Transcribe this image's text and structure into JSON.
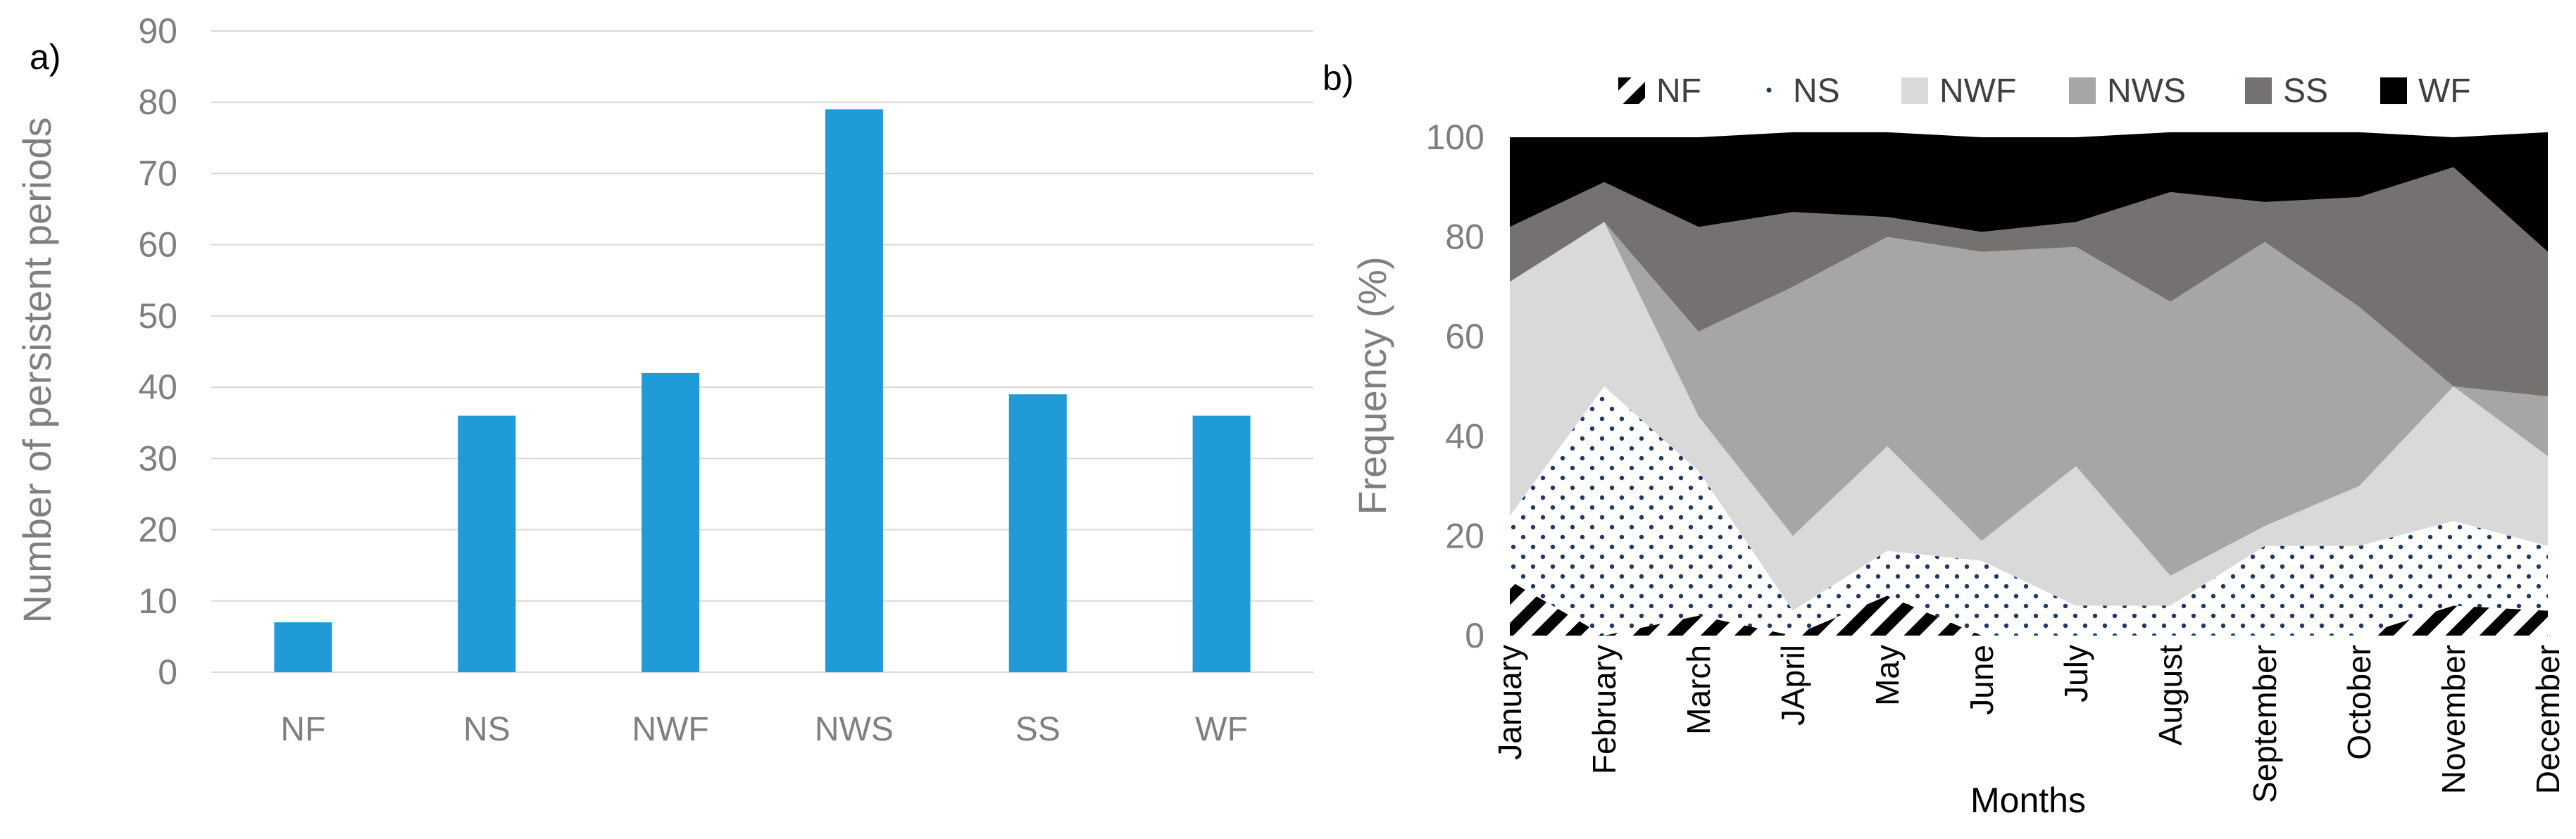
{
  "chart_data": [
    {
      "panel_label": "a)",
      "type": "bar",
      "title": "",
      "xlabel": "",
      "ylabel": "Number of persistent periods",
      "ylim": [
        0,
        90
      ],
      "yticks": [
        "0",
        "10",
        "20",
        "30",
        "40",
        "50",
        "60",
        "70",
        "80",
        "90"
      ],
      "grid": true,
      "categories": [
        "NF",
        "NS",
        "NWF",
        "NWS",
        "SS",
        "WF"
      ],
      "values": [
        7,
        36,
        42,
        79,
        39,
        36
      ],
      "bar_color": "#1f9bd7",
      "gridline_color": "#d9d9d9"
    },
    {
      "panel_label": "b)",
      "type": "area",
      "stacked": true,
      "title": "",
      "xlabel": "Months",
      "ylabel": "Frequency (%)",
      "ylim": [
        0,
        100
      ],
      "yticks": [
        "0",
        "20",
        "40",
        "60",
        "80",
        "100"
      ],
      "legend_position": "top",
      "x": [
        "January",
        "February",
        "March",
        "JApril",
        "May",
        "June",
        "July",
        "August",
        "September",
        "October",
        "November",
        "December"
      ],
      "series": [
        {
          "name": "NF",
          "color": "#000000",
          "pattern": "wide-diagonal",
          "values": [
            11,
            0,
            4,
            0,
            8,
            0,
            0,
            0,
            0,
            0,
            6,
            5
          ]
        },
        {
          "name": "NS",
          "color": "#ffffff",
          "pattern": "dots",
          "values": [
            13,
            50,
            29,
            5,
            9,
            15,
            6,
            6,
            18,
            18,
            17,
            13
          ]
        },
        {
          "name": "NWF",
          "color": "#d9d9d9",
          "pattern": "solid",
          "values": [
            47,
            33,
            11,
            15,
            21,
            4,
            28,
            6,
            4,
            12,
            27,
            18
          ]
        },
        {
          "name": "NWS",
          "color": "#a6a6a6",
          "pattern": "solid",
          "values": [
            0,
            0,
            17,
            50,
            42,
            58,
            44,
            55,
            57,
            36,
            0,
            12
          ]
        },
        {
          "name": "SS",
          "color": "#767171",
          "pattern": "solid",
          "values": [
            11,
            8,
            21,
            15,
            4,
            4,
            5,
            22,
            8,
            22,
            44,
            29
          ]
        },
        {
          "name": "WF",
          "color": "#000000",
          "pattern": "solid",
          "values": [
            18,
            9,
            18,
            16,
            17,
            19,
            17,
            12,
            14,
            13,
            6,
            24
          ]
        }
      ]
    }
  ]
}
